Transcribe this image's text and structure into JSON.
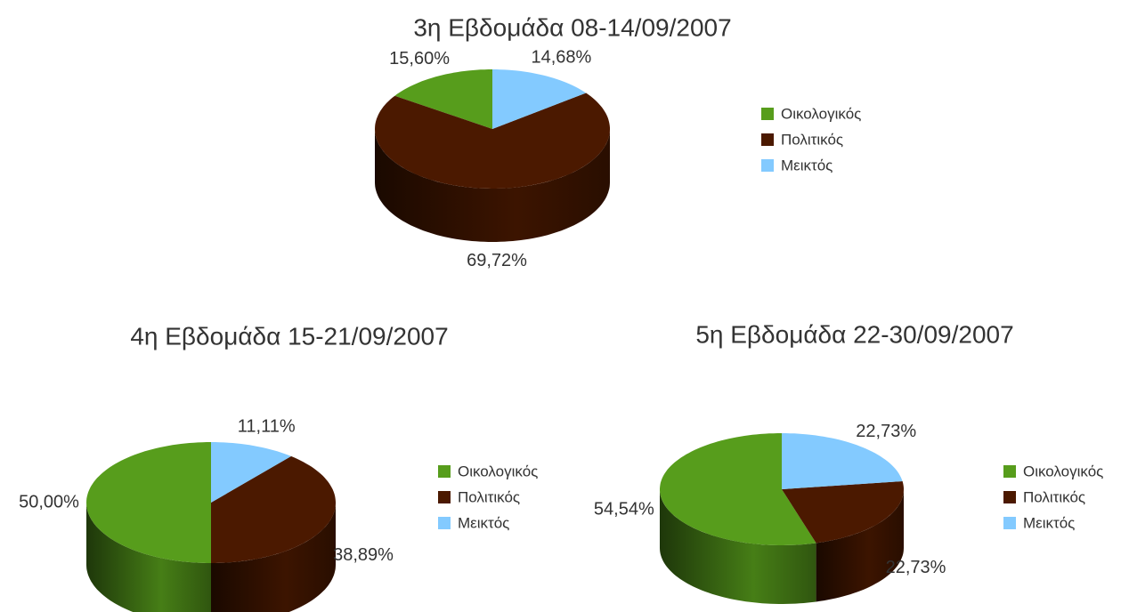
{
  "chart_data": [
    {
      "type": "pie",
      "title": "3η Εβδομάδα 08-14/09/2007",
      "categories": [
        "Οικολογικός",
        "Πολιτικός",
        "Μεικτός"
      ],
      "values": [
        15.6,
        69.72,
        14.68
      ],
      "value_labels": [
        "15,60%",
        "69,72%",
        "14,68%"
      ],
      "colors": [
        "#579d1c",
        "#4b1900",
        "#83caff"
      ],
      "legend": "right"
    },
    {
      "type": "pie",
      "title": "4η Εβδομάδα 15-21/09/2007",
      "categories": [
        "Οικολογικός",
        "Πολιτικός",
        "Μεικτός"
      ],
      "values": [
        50.0,
        38.89,
        11.11
      ],
      "value_labels": [
        "50,00%",
        "38,89%",
        "11,11%"
      ],
      "colors": [
        "#579d1c",
        "#4b1900",
        "#83caff"
      ],
      "legend": "right"
    },
    {
      "type": "pie",
      "title": "5η Εβδομάδα 22-30/09/2007",
      "categories": [
        "Οικολογικός",
        "Πολιτικός",
        "Μεικτός"
      ],
      "values": [
        54.54,
        22.73,
        22.73
      ],
      "value_labels": [
        "54,54%",
        "22,73%",
        "22,73%"
      ],
      "colors": [
        "#579d1c",
        "#4b1900",
        "#83caff"
      ],
      "legend": "right"
    }
  ]
}
